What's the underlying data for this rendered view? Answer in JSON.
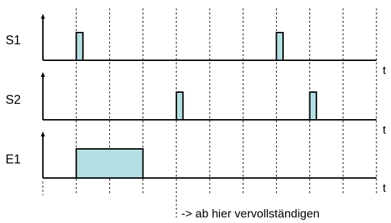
{
  "time_axis_label": "t",
  "annotation": "-> ab hier vervollständigen",
  "colors": {
    "pulse_fill": "#b4dfe2",
    "line": "#000000"
  },
  "signals": [
    {
      "name": "S1",
      "pulses": [
        {
          "start": 1.0,
          "end": 1.2
        },
        {
          "start": 7.0,
          "end": 7.2
        }
      ],
      "level": "short"
    },
    {
      "name": "S2",
      "pulses": [
        {
          "start": 4.0,
          "end": 4.2
        },
        {
          "start": 8.0,
          "end": 8.2
        }
      ],
      "level": "short"
    },
    {
      "name": "E1",
      "pulses": [
        {
          "start": 1.0,
          "end": 3.0
        }
      ],
      "level": "tall"
    }
  ],
  "grid": {
    "divisions": 10,
    "annotation_division": 4
  }
}
